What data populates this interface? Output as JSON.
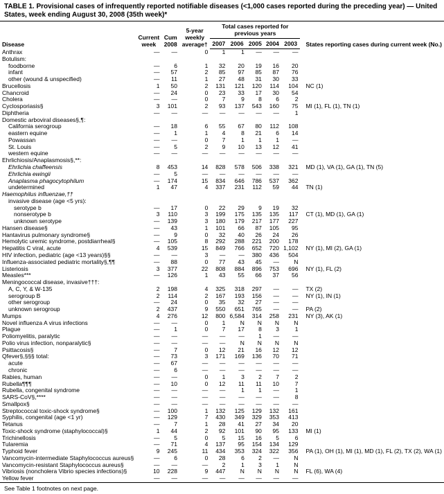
{
  "title": "TABLE 1. Provisional cases of infrequently reported notifiable diseases (<1,000 cases reported during the preceding year) — United States, week ending August 30, 2008 (35th week)*",
  "headers": {
    "disease": "Disease",
    "current_week": "Current week",
    "cum_2008": "Cum 2008",
    "avg5": "5-year weekly average†",
    "total_span": "Total cases reported for previous years",
    "y2007": "2007",
    "y2006": "2006",
    "y2005": "2005",
    "y2004": "2004",
    "y2003": "2003",
    "states": "States reporting cases during current week (No.)"
  },
  "footnote": "See Table 1 footnotes on next page.",
  "rows": [
    {
      "d": "Anthrax",
      "i": 0,
      "v": [
        "—",
        "—",
        "0",
        "1",
        "1",
        "—",
        "—",
        "—"
      ],
      "s": ""
    },
    {
      "d": "Botulism:",
      "i": 0,
      "v": [
        "",
        "",
        "",
        "",
        "",
        "",
        "",
        ""
      ],
      "s": ""
    },
    {
      "d": "foodborne",
      "i": 1,
      "v": [
        "—",
        "6",
        "1",
        "32",
        "20",
        "19",
        "16",
        "20"
      ],
      "s": ""
    },
    {
      "d": "infant",
      "i": 1,
      "v": [
        "—",
        "57",
        "2",
        "85",
        "97",
        "85",
        "87",
        "76"
      ],
      "s": ""
    },
    {
      "d": "other (wound & unspecified)",
      "i": 1,
      "v": [
        "—",
        "11",
        "1",
        "27",
        "48",
        "31",
        "30",
        "33"
      ],
      "s": ""
    },
    {
      "d": "Brucellosis",
      "i": 0,
      "v": [
        "1",
        "50",
        "2",
        "131",
        "121",
        "120",
        "114",
        "104"
      ],
      "s": "NC (1)"
    },
    {
      "d": "Chancroid",
      "i": 0,
      "v": [
        "—",
        "24",
        "0",
        "23",
        "33",
        "17",
        "30",
        "54"
      ],
      "s": ""
    },
    {
      "d": "Cholera",
      "i": 0,
      "v": [
        "—",
        "—",
        "0",
        "7",
        "9",
        "8",
        "6",
        "2"
      ],
      "s": ""
    },
    {
      "d": "Cyclosporiasis§",
      "i": 0,
      "v": [
        "3",
        "101",
        "2",
        "93",
        "137",
        "543",
        "160",
        "75"
      ],
      "s": "MI (1), FL (1), TN (1)"
    },
    {
      "d": "Diphtheria",
      "i": 0,
      "v": [
        "—",
        "—",
        "—",
        "—",
        "—",
        "—",
        "—",
        "1"
      ],
      "s": ""
    },
    {
      "d": "Domestic arboviral diseases§,¶:",
      "i": 0,
      "v": [
        "",
        "",
        "",
        "",
        "",
        "",
        "",
        ""
      ],
      "s": ""
    },
    {
      "d": "California serogroup",
      "i": 1,
      "v": [
        "—",
        "18",
        "6",
        "55",
        "67",
        "80",
        "112",
        "108"
      ],
      "s": ""
    },
    {
      "d": "eastern equine",
      "i": 1,
      "v": [
        "—",
        "1",
        "1",
        "4",
        "8",
        "21",
        "6",
        "14"
      ],
      "s": ""
    },
    {
      "d": "Powassan",
      "i": 1,
      "v": [
        "—",
        "—",
        "0",
        "7",
        "1",
        "1",
        "1",
        "—"
      ],
      "s": ""
    },
    {
      "d": "St. Louis",
      "i": 1,
      "v": [
        "—",
        "5",
        "2",
        "9",
        "10",
        "13",
        "12",
        "41"
      ],
      "s": ""
    },
    {
      "d": "western equine",
      "i": 1,
      "v": [
        "—",
        "—",
        "—",
        "—",
        "—",
        "—",
        "—",
        "—"
      ],
      "s": ""
    },
    {
      "d": "Ehrlichiosis/Anaplasmosis§,**:",
      "i": 0,
      "v": [
        "",
        "",
        "",
        "",
        "",
        "",
        "",
        ""
      ],
      "s": ""
    },
    {
      "d": "Ehrlichia chaffeensis",
      "i": 1,
      "it": true,
      "v": [
        "8",
        "453",
        "14",
        "828",
        "578",
        "506",
        "338",
        "321"
      ],
      "s": "MD (1), VA (1), GA (1), TN (5)"
    },
    {
      "d": "Ehrlichia ewingii",
      "i": 1,
      "it": true,
      "v": [
        "—",
        "5",
        "—",
        "—",
        "—",
        "—",
        "—",
        "—"
      ],
      "s": ""
    },
    {
      "d": "Anaplasma phagocytophilum",
      "i": 1,
      "it": true,
      "v": [
        "—",
        "174",
        "15",
        "834",
        "646",
        "786",
        "537",
        "362"
      ],
      "s": ""
    },
    {
      "d": "undetermined",
      "i": 1,
      "v": [
        "1",
        "47",
        "4",
        "337",
        "231",
        "112",
        "59",
        "44"
      ],
      "s": "TN (1)"
    },
    {
      "d": "Haemophilus influenzae,††",
      "i": 0,
      "it": true,
      "v": [
        "",
        "",
        "",
        "",
        "",
        "",
        "",
        ""
      ],
      "s": ""
    },
    {
      "d": "invasive disease (age <5 yrs):",
      "i": 1,
      "v": [
        "",
        "",
        "",
        "",
        "",
        "",
        "",
        ""
      ],
      "s": ""
    },
    {
      "d": "serotype b",
      "i": 2,
      "v": [
        "—",
        "17",
        "0",
        "22",
        "29",
        "9",
        "19",
        "32"
      ],
      "s": ""
    },
    {
      "d": "nonserotype b",
      "i": 2,
      "v": [
        "3",
        "110",
        "3",
        "199",
        "175",
        "135",
        "135",
        "117"
      ],
      "s": "CT (1), MD (1), GA (1)"
    },
    {
      "d": "unknown serotype",
      "i": 2,
      "v": [
        "—",
        "139",
        "3",
        "180",
        "179",
        "217",
        "177",
        "227"
      ],
      "s": ""
    },
    {
      "d": "Hansen disease§",
      "i": 0,
      "v": [
        "—",
        "43",
        "1",
        "101",
        "66",
        "87",
        "105",
        "95"
      ],
      "s": ""
    },
    {
      "d": "Hantavirus pulmonary syndrome§",
      "i": 0,
      "v": [
        "—",
        "9",
        "0",
        "32",
        "40",
        "26",
        "24",
        "26"
      ],
      "s": ""
    },
    {
      "d": "Hemolytic uremic syndrome, postdiarrheal§",
      "i": 0,
      "v": [
        "—",
        "105",
        "8",
        "292",
        "288",
        "221",
        "200",
        "178"
      ],
      "s": ""
    },
    {
      "d": "Hepatitis C viral, acute",
      "i": 0,
      "v": [
        "4",
        "539",
        "15",
        "849",
        "766",
        "652",
        "720",
        "1,102"
      ],
      "s": "NY (1), MI (2), GA (1)"
    },
    {
      "d": "HIV infection, pediatric (age <13 years)§§",
      "i": 0,
      "v": [
        "—",
        "—",
        "3",
        "—",
        "—",
        "380",
        "436",
        "504"
      ],
      "s": ""
    },
    {
      "d": "Influenza-associated pediatric mortality§,¶¶",
      "i": 0,
      "v": [
        "—",
        "88",
        "0",
        "77",
        "43",
        "45",
        "—",
        "N"
      ],
      "s": ""
    },
    {
      "d": "Listeriosis",
      "i": 0,
      "v": [
        "3",
        "377",
        "22",
        "808",
        "884",
        "896",
        "753",
        "696"
      ],
      "s": "NY (1), FL (2)"
    },
    {
      "d": "Measles***",
      "i": 0,
      "v": [
        "—",
        "126",
        "1",
        "43",
        "55",
        "66",
        "37",
        "56"
      ],
      "s": ""
    },
    {
      "d": "Meningococcal disease, invasive†††:",
      "i": 0,
      "v": [
        "",
        "",
        "",
        "",
        "",
        "",
        "",
        ""
      ],
      "s": ""
    },
    {
      "d": "A, C, Y, & W-135",
      "i": 1,
      "v": [
        "2",
        "198",
        "4",
        "325",
        "318",
        "297",
        "—",
        "—"
      ],
      "s": "TX (2)"
    },
    {
      "d": "serogroup B",
      "i": 1,
      "v": [
        "2",
        "114",
        "2",
        "167",
        "193",
        "156",
        "—",
        "—"
      ],
      "s": "NY (1), IN (1)"
    },
    {
      "d": "other serogroup",
      "i": 1,
      "v": [
        "—",
        "24",
        "0",
        "35",
        "32",
        "27",
        "—",
        "—"
      ],
      "s": ""
    },
    {
      "d": "unknown serogroup",
      "i": 1,
      "v": [
        "2",
        "437",
        "9",
        "550",
        "651",
        "765",
        "—",
        "—"
      ],
      "s": "PA (2)"
    },
    {
      "d": "Mumps",
      "i": 0,
      "v": [
        "4",
        "276",
        "12",
        "800",
        "6,584",
        "314",
        "258",
        "231"
      ],
      "s": "NY (3), AK (1)"
    },
    {
      "d": "Novel influenza A virus infections",
      "i": 0,
      "v": [
        "—",
        "—",
        "0",
        "1",
        "N",
        "N",
        "N",
        "N"
      ],
      "s": ""
    },
    {
      "d": "Plague",
      "i": 0,
      "v": [
        "—",
        "1",
        "0",
        "7",
        "17",
        "8",
        "3",
        "1"
      ],
      "s": ""
    },
    {
      "d": "Poliomyelitis, paralytic",
      "i": 0,
      "v": [
        "—",
        "—",
        "—",
        "—",
        "—",
        "1",
        "—",
        "—"
      ],
      "s": ""
    },
    {
      "d": "Polio virus infection, nonparalytic§",
      "i": 0,
      "v": [
        "—",
        "—",
        "—",
        "—",
        "N",
        "N",
        "N",
        "N"
      ],
      "s": ""
    },
    {
      "d": "Psittacosis§",
      "i": 0,
      "v": [
        "—",
        "7",
        "0",
        "12",
        "21",
        "16",
        "12",
        "12"
      ],
      "s": ""
    },
    {
      "d": "Qfever§,§§§ total:",
      "i": 0,
      "v": [
        "—",
        "73",
        "3",
        "171",
        "169",
        "136",
        "70",
        "71"
      ],
      "s": ""
    },
    {
      "d": "acute",
      "i": 1,
      "v": [
        "—",
        "67",
        "—",
        "—",
        "—",
        "—",
        "—",
        "—"
      ],
      "s": ""
    },
    {
      "d": "chronic",
      "i": 1,
      "v": [
        "—",
        "6",
        "—",
        "—",
        "—",
        "—",
        "—",
        "—"
      ],
      "s": ""
    },
    {
      "d": "Rabies, human",
      "i": 0,
      "v": [
        "—",
        "—",
        "0",
        "1",
        "3",
        "2",
        "7",
        "2"
      ],
      "s": ""
    },
    {
      "d": "Rubella¶¶¶",
      "i": 0,
      "v": [
        "—",
        "10",
        "0",
        "12",
        "11",
        "11",
        "10",
        "7"
      ],
      "s": ""
    },
    {
      "d": "Rubella, congenital syndrome",
      "i": 0,
      "v": [
        "—",
        "—",
        "—",
        "—",
        "1",
        "1",
        "—",
        "1"
      ],
      "s": ""
    },
    {
      "d": "SARS-CoV§,****",
      "i": 0,
      "v": [
        "—",
        "—",
        "—",
        "—",
        "—",
        "—",
        "—",
        "8"
      ],
      "s": ""
    },
    {
      "d": "Smallpox§",
      "i": 0,
      "v": [
        "—",
        "—",
        "—",
        "—",
        "—",
        "—",
        "—",
        "—"
      ],
      "s": ""
    },
    {
      "d": "Streptococcal toxic-shock syndrome§",
      "i": 0,
      "v": [
        "—",
        "100",
        "1",
        "132",
        "125",
        "129",
        "132",
        "161"
      ],
      "s": ""
    },
    {
      "d": "Syphilis, congenital (age <1 yr)",
      "i": 0,
      "v": [
        "—",
        "129",
        "7",
        "430",
        "349",
        "329",
        "353",
        "413"
      ],
      "s": ""
    },
    {
      "d": "Tetanus",
      "i": 0,
      "v": [
        "—",
        "7",
        "1",
        "28",
        "41",
        "27",
        "34",
        "20"
      ],
      "s": ""
    },
    {
      "d": "Toxic-shock syndrome (staphylococcal)§",
      "i": 0,
      "v": [
        "1",
        "44",
        "2",
        "92",
        "101",
        "90",
        "95",
        "133"
      ],
      "s": "MI (1)"
    },
    {
      "d": "Trichinellosis",
      "i": 0,
      "v": [
        "—",
        "5",
        "0",
        "5",
        "15",
        "16",
        "5",
        "6"
      ],
      "s": ""
    },
    {
      "d": "Tularemia",
      "i": 0,
      "v": [
        "—",
        "71",
        "4",
        "137",
        "95",
        "154",
        "134",
        "129"
      ],
      "s": ""
    },
    {
      "d": "Typhoid fever",
      "i": 0,
      "v": [
        "9",
        "245",
        "11",
        "434",
        "353",
        "324",
        "322",
        "356"
      ],
      "s": "PA (1), OH (1), MI (1), MD (1), FL (2), TX (2), WA (1)"
    },
    {
      "d": "Vancomycin-intermediate Staphylococcus aureus§",
      "i": 0,
      "v": [
        "—",
        "6",
        "0",
        "28",
        "6",
        "2",
        "—",
        "N"
      ],
      "s": ""
    },
    {
      "d": "Vancomycin-resistant Staphylococcus aureus§",
      "i": 0,
      "v": [
        "—",
        "—",
        "—",
        "2",
        "1",
        "3",
        "1",
        "N"
      ],
      "s": ""
    },
    {
      "d": "Vibriosis (noncholera Vibrio species infections)§",
      "i": 0,
      "v": [
        "10",
        "228",
        "9",
        "447",
        "N",
        "N",
        "N",
        "N"
      ],
      "s": "FL (6), WA (4)"
    },
    {
      "d": "Yellow fever",
      "i": 0,
      "v": [
        "—",
        "—",
        "—",
        "—",
        "—",
        "—",
        "—",
        "—"
      ],
      "s": ""
    }
  ]
}
